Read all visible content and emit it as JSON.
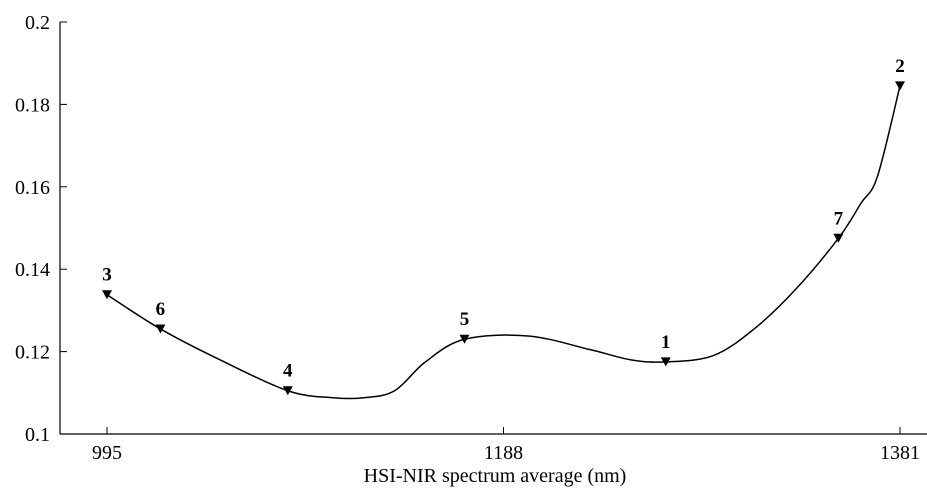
{
  "chart_data": {
    "type": "line",
    "title": "",
    "xlabel": "HSI-NIR spectrum average (nm)",
    "ylabel": "",
    "xlim": [
      995,
      1381
    ],
    "ylim": [
      0.1,
      0.2
    ],
    "x_ticks": [
      995,
      1188,
      1381
    ],
    "x_tick_labels": [
      "995",
      "1188",
      "1381"
    ],
    "y_ticks": [
      0.1,
      0.12,
      0.14,
      0.16,
      0.18,
      0.2
    ],
    "y_tick_labels": [
      "0.1",
      "0.12",
      "0.14",
      "0.16",
      "0.18",
      "0.2"
    ],
    "grid": false,
    "marker": "triangle-down",
    "series": [
      {
        "points": [
          {
            "label": "3",
            "x": 995,
            "y": 0.1338
          },
          {
            "label": "6",
            "x": 1021,
            "y": 0.1255
          },
          {
            "label": "4",
            "x": 1083,
            "y": 0.1105
          },
          {
            "label": "5",
            "x": 1169,
            "y": 0.123
          },
          {
            "label": "1",
            "x": 1267,
            "y": 0.1175
          },
          {
            "label": "7",
            "x": 1351,
            "y": 0.1475
          },
          {
            "label": "2",
            "x": 1381,
            "y": 0.1845
          }
        ],
        "curve": [
          [
            995,
            0.1338
          ],
          [
            1021,
            0.1255
          ],
          [
            1050,
            0.118
          ],
          [
            1083,
            0.1105
          ],
          [
            1105,
            0.1088
          ],
          [
            1120,
            0.1088
          ],
          [
            1135,
            0.1105
          ],
          [
            1150,
            0.1175
          ],
          [
            1169,
            0.123
          ],
          [
            1200,
            0.1238
          ],
          [
            1230,
            0.1205
          ],
          [
            1250,
            0.118
          ],
          [
            1267,
            0.1175
          ],
          [
            1290,
            0.119
          ],
          [
            1310,
            0.1255
          ],
          [
            1330,
            0.135
          ],
          [
            1351,
            0.1475
          ],
          [
            1362,
            0.156
          ],
          [
            1370,
            0.1625
          ],
          [
            1381,
            0.1845
          ]
        ]
      }
    ]
  }
}
